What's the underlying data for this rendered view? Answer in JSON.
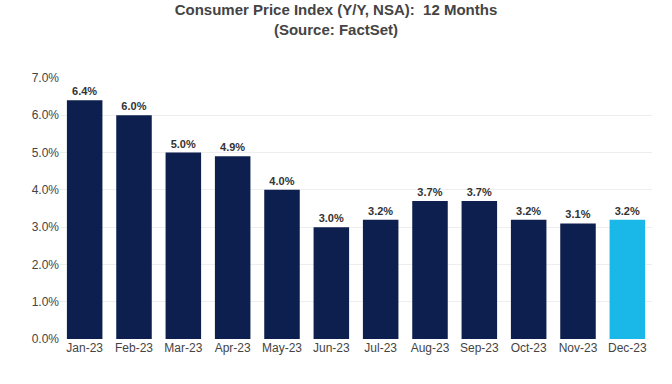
{
  "chart_data": {
    "type": "bar",
    "title": "Consumer Price Index (Y/Y, NSA):  12 Months",
    "subtitle": "(Source: FactSet)",
    "categories": [
      "Jan-23",
      "Feb-23",
      "Mar-23",
      "Apr-23",
      "May-23",
      "Jun-23",
      "Jul-23",
      "Aug-23",
      "Sep-23",
      "Oct-23",
      "Nov-23",
      "Dec-23"
    ],
    "values": [
      6.4,
      6.0,
      5.0,
      4.9,
      4.0,
      3.0,
      3.2,
      3.7,
      3.7,
      3.2,
      3.1,
      3.2
    ],
    "value_labels": [
      "6.4%",
      "6.0%",
      "5.0%",
      "4.9%",
      "4.0%",
      "3.0%",
      "3.2%",
      "3.7%",
      "3.7%",
      "3.2%",
      "3.1%",
      "3.2%"
    ],
    "data_labels": true,
    "colors": [
      "#0d1f4e",
      "#0d1f4e",
      "#0d1f4e",
      "#0d1f4e",
      "#0d1f4e",
      "#0d1f4e",
      "#0d1f4e",
      "#0d1f4e",
      "#0d1f4e",
      "#0d1f4e",
      "#0d1f4e",
      "#1ab8e8"
    ],
    "ylim": [
      0,
      7.0
    ],
    "yticks": [
      {
        "value": 0.0,
        "label": "0.0%"
      },
      {
        "value": 1.0,
        "label": "1.0%"
      },
      {
        "value": 2.0,
        "label": "2.0%"
      },
      {
        "value": 3.0,
        "label": "3.0%"
      },
      {
        "value": 4.0,
        "label": "4.0%"
      },
      {
        "value": 5.0,
        "label": "5.0%"
      },
      {
        "value": 6.0,
        "label": "6.0%"
      },
      {
        "value": 7.0,
        "label": "7.0%"
      }
    ],
    "grid": true
  }
}
